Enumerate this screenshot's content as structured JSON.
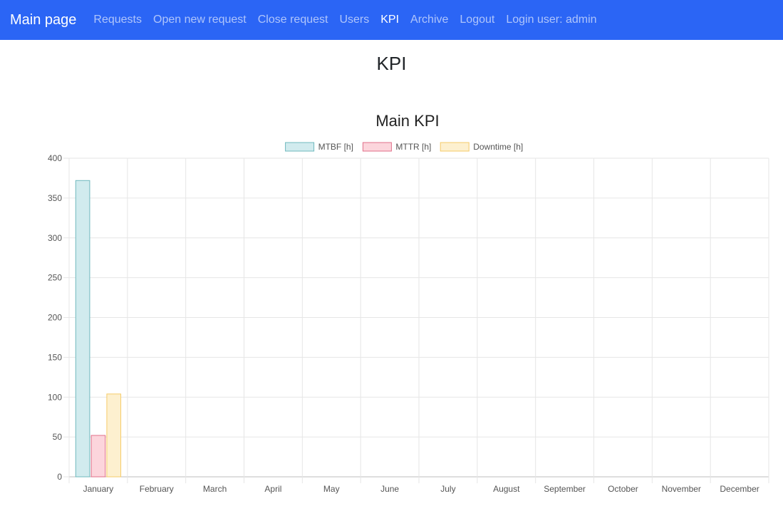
{
  "nav": {
    "brand": "Main page",
    "links": [
      {
        "label": "Requests",
        "active": false
      },
      {
        "label": "Open new request",
        "active": false
      },
      {
        "label": "Close request",
        "active": false
      },
      {
        "label": "Users",
        "active": false
      },
      {
        "label": "KPI",
        "active": true
      },
      {
        "label": "Archive",
        "active": false
      },
      {
        "label": "Logout",
        "active": false
      }
    ],
    "login_user": "Login user: admin"
  },
  "page": {
    "title": "KPI"
  },
  "colors": {
    "navbar": "#2b65f5",
    "series_fill": [
      "#d1ebee",
      "#fcd5dc",
      "#fdf0cf"
    ],
    "series_stroke": [
      "#6fb8bd",
      "#e0708a",
      "#f5cb6a"
    ]
  },
  "chart_data": {
    "type": "bar",
    "title": "Main KPI",
    "categories": [
      "January",
      "February",
      "March",
      "April",
      "May",
      "June",
      "July",
      "August",
      "September",
      "October",
      "November",
      "December"
    ],
    "series": [
      {
        "name": "MTBF [h]",
        "values": [
          372,
          0,
          0,
          0,
          0,
          0,
          0,
          0,
          0,
          0,
          0,
          0
        ]
      },
      {
        "name": "MTTR [h]",
        "values": [
          52,
          0,
          0,
          0,
          0,
          0,
          0,
          0,
          0,
          0,
          0,
          0
        ]
      },
      {
        "name": "Downtime [h]",
        "values": [
          104,
          0,
          0,
          0,
          0,
          0,
          0,
          0,
          0,
          0,
          0,
          0
        ]
      }
    ],
    "ylim": [
      0,
      400
    ],
    "yticks": [
      0,
      50,
      100,
      150,
      200,
      250,
      300,
      350,
      400
    ],
    "grid": true,
    "legend": "top-center"
  }
}
